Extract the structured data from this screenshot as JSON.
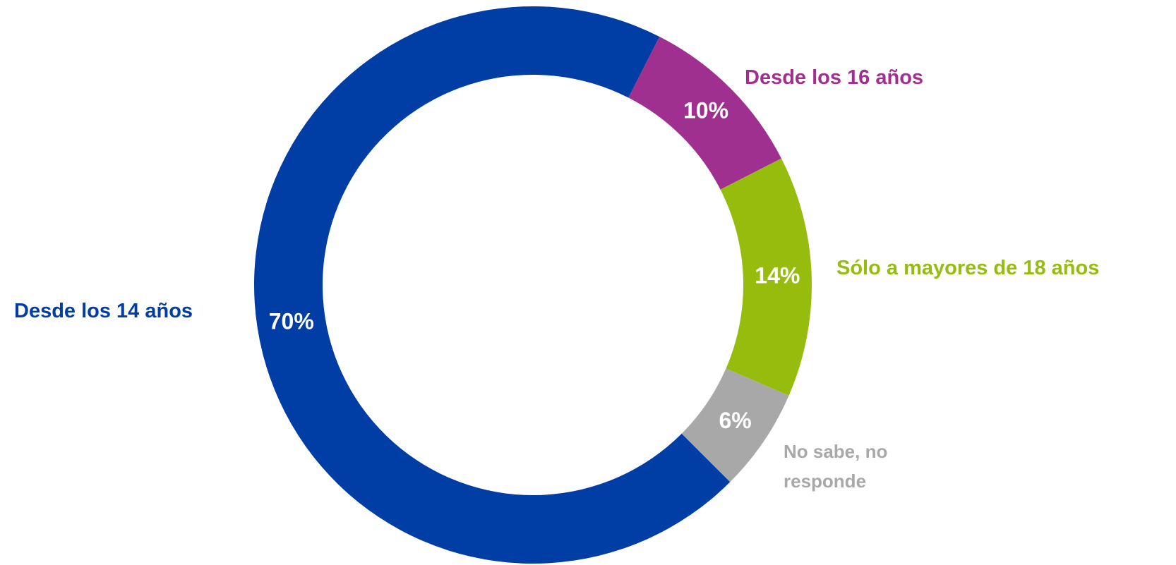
{
  "chart_data": {
    "type": "donut",
    "categories": [
      "Desde los 14 años",
      "Desde los 16 años",
      "Sólo a mayores de 18 años",
      "No sabe, no responde"
    ],
    "values": [
      70,
      10,
      14,
      6
    ],
    "value_labels": [
      "70%",
      "10%",
      "14%",
      "6%"
    ],
    "colors": [
      "#003da5",
      "#a03090",
      "#96bd0d",
      "#a8a8a8"
    ]
  }
}
